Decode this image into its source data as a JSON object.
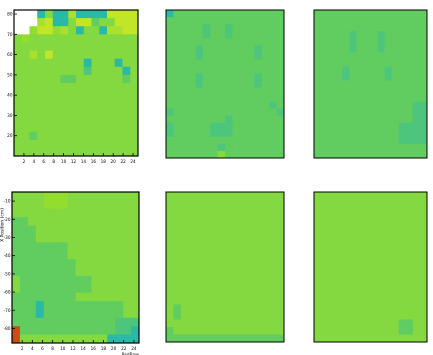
{
  "figure": {
    "background": "#ffffff",
    "frame_color": "#000000"
  },
  "palette": {
    "0": "#ffffff",
    "1": "#84d840",
    "2": "#61cc5f",
    "3": "#4dc57c",
    "4": "#2ab9a6",
    "5": "#c2e527",
    "6": "#d6c01e",
    "7": "#cc4c14",
    "8": "#93dd2e",
    "9": "#a9e02c"
  },
  "chart_data": [
    {
      "type": "heatmap",
      "title": "",
      "xlabel": "",
      "ylabel": "",
      "xticks": [
        "2",
        "4",
        "6",
        "8",
        "10",
        "12",
        "14",
        "16",
        "18",
        "20",
        "22",
        "24"
      ],
      "yticks": [
        "20",
        "30",
        "40",
        "50",
        "60",
        "70",
        "80"
      ],
      "xlim": [
        0,
        25
      ],
      "ylim": [
        10,
        82
      ],
      "grid": false,
      "rows": [
        "0004144944445555",
        "0009544155211555",
        "0085589141149955",
        "1811111111111111",
        "1111111111111111",
        "1191511111111111",
        "1111111114111411",
        "1111111113111141",
        "1111112211111121",
        "1111111111111111",
        "1111111111111111",
        "1111111111111111",
        "1111111111111111",
        "1111111111111111",
        "1111111111111111",
        "1121111111111111",
        "1111111111111111",
        "1111111111111111"
      ]
    },
    {
      "type": "heatmap",
      "title": "",
      "grid": false,
      "rows": [
        "4222222222222222",
        "2222222222222222",
        "2222232232222222",
        "2222232232222222",
        "2222222222222222",
        "2222322222223222",
        "2222322222223222",
        "2222222222222222",
        "2222222222222222",
        "2222322222223222",
        "2222322222223222",
        "2222222222222222",
        "2222222222222222",
        "2222222222222232",
        "3222222222222223",
        "2222222232222222",
        "3222223332222222",
        "3222223332222222",
        "2222222222222222",
        "2222222322222222",
        "2222222122222222"
      ]
    },
    {
      "type": "heatmap",
      "title": "",
      "grid": false,
      "rows": [
        "2222222222222222",
        "2222222222222222",
        "2222222222222222",
        "2222232223222222",
        "2222232223222222",
        "2222232223222222",
        "2222222222222222",
        "2222222222222222",
        "2222322222322222",
        "2222322222322222",
        "2222222222222222",
        "2222222222222222",
        "2222222222222222",
        "2222222222222233",
        "2222222222222233",
        "2222222222222233",
        "2222222222223333",
        "2222222222223333",
        "2222222222223333",
        "2222222222222222",
        "2222222222222222"
      ]
    },
    {
      "type": "heatmap",
      "title": "",
      "xlabel": "PadRow",
      "ylabel": "X Position (cm)",
      "xticks": [
        "2",
        "4",
        "6",
        "8",
        "10",
        "12",
        "14",
        "16",
        "18",
        "20",
        "22",
        "24"
      ],
      "yticks": [
        "-10",
        "-20",
        "-30",
        "-40",
        "-50",
        "-60",
        "-70",
        "-80"
      ],
      "xlim": [
        0,
        25
      ],
      "ylim": [
        -88,
        -5
      ],
      "grid": false,
      "rows": [
        "1111888111111111",
        "1111888111111111",
        "1111111111111111",
        "2211111111111111",
        "2221111111111111",
        "2221111111111111",
        "2222222111111111",
        "2222222111111111",
        "2222222211111111",
        "2222222211111111",
        "1222222222111111",
        "1222222222111111",
        "2222222211111111",
        "2224222222222211",
        "2224222222222211",
        "2222222222222333",
        "7222222222222334",
        "7111111111114444"
      ]
    },
    {
      "type": "heatmap",
      "title": "",
      "grid": false,
      "rows": [
        "1111111111111111",
        "1111111111111111",
        "1111111111111111",
        "1111111111111111",
        "1111111111111111",
        "1111111111111111",
        "1111111111111111",
        "1111111111111111",
        "1111111111111111",
        "1111111111111111",
        "1111111111111111",
        "1111111111111111",
        "1111111111111111",
        "1111111111111111",
        "1111111111111111",
        "1211111111111111",
        "1211111111111111",
        "1111111111111111",
        "2111111111111111",
        "2222222222222222"
      ]
    },
    {
      "type": "heatmap",
      "title": "",
      "grid": false,
      "rows": [
        "1111111111111111",
        "1111111111111111",
        "1111111111111111",
        "1111111111111111",
        "1111111111111111",
        "1111111111111111",
        "1111111111111111",
        "1111111111111111",
        "1111111111111111",
        "1111111111111111",
        "1111111111111111",
        "1111111111111111",
        "1111111111111111",
        "1111111111111111",
        "1111111111111111",
        "1111111111111111",
        "1111111111111111",
        "1111111111112211",
        "1111111111112211",
        "1111111111111111"
      ]
    }
  ]
}
